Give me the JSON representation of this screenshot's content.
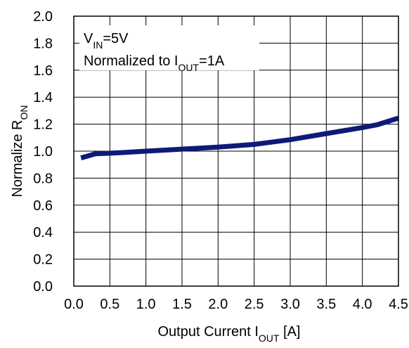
{
  "chart_data": {
    "type": "line",
    "xlabel": {
      "text": "Output Current I",
      "sub": "OUT",
      "suffix": " [A]"
    },
    "ylabel": {
      "text": "Normalize R",
      "sub": "ON"
    },
    "annotations": [
      {
        "text": "V",
        "sub": "IN",
        "suffix": "=5V"
      },
      {
        "text": "Normalized to I",
        "sub": "OUT",
        "suffix": "=1A"
      }
    ],
    "xlim": [
      0.0,
      4.5
    ],
    "ylim": [
      0.0,
      2.0
    ],
    "xticks": [
      "0.0",
      "0.5",
      "1.0",
      "1.5",
      "2.0",
      "2.5",
      "3.0",
      "3.5",
      "4.0",
      "4.5"
    ],
    "yticks": [
      "0.0",
      "0.2",
      "0.4",
      "0.6",
      "0.8",
      "1.0",
      "1.2",
      "1.4",
      "1.6",
      "1.8",
      "2.0"
    ],
    "grid": true,
    "series": [
      {
        "color": "#0d1a78",
        "x": [
          0.1,
          0.3,
          0.5,
          0.7,
          1.0,
          1.5,
          2.0,
          2.5,
          3.0,
          3.5,
          4.0,
          4.2,
          4.5
        ],
        "y": [
          0.95,
          0.98,
          0.985,
          0.99,
          1.0,
          1.015,
          1.03,
          1.05,
          1.085,
          1.13,
          1.175,
          1.195,
          1.245
        ]
      }
    ]
  }
}
